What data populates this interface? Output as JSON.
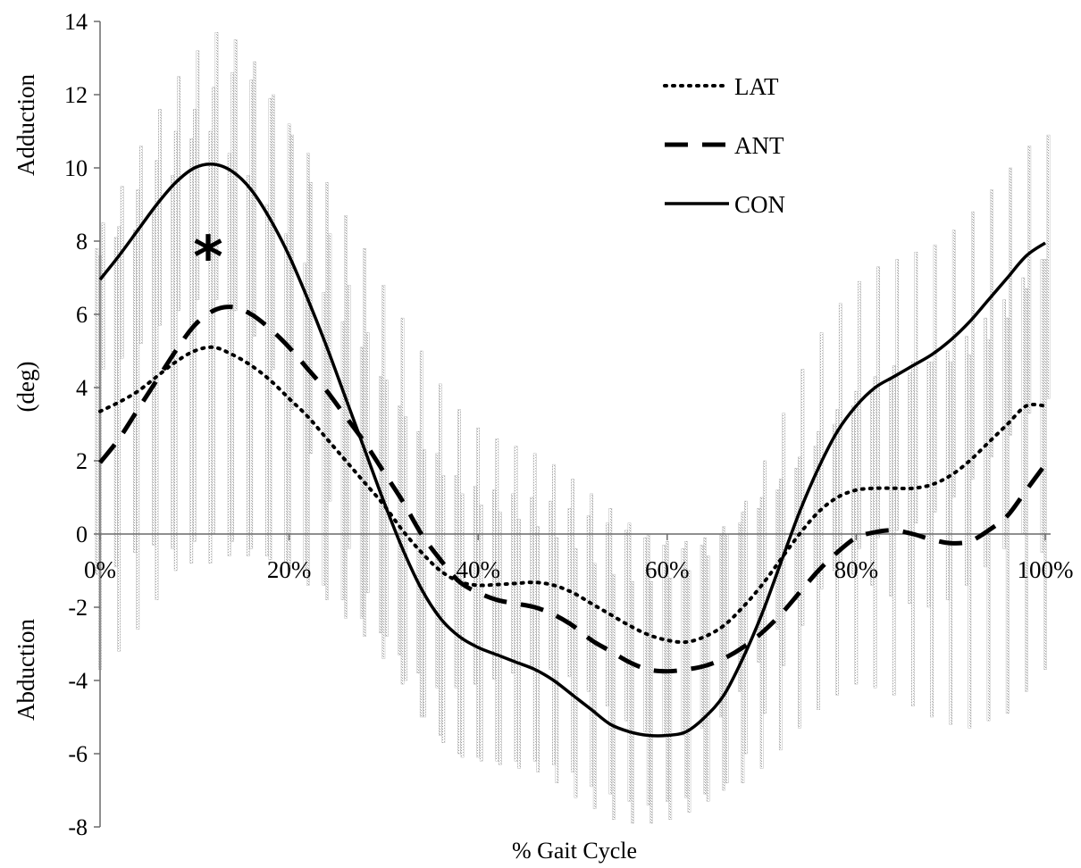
{
  "chart_data": {
    "type": "line",
    "title": "",
    "xlabel": "% Gait Cycle",
    "ylabel_top": "Adduction",
    "ylabel_mid": "(deg)",
    "ylabel_bottom": "Abduction",
    "ylim": [
      -8,
      14
    ],
    "xlim": [
      0,
      100
    ],
    "y_ticks": [
      "-8",
      "-6",
      "-4",
      "-2",
      "0",
      "2",
      "4",
      "6",
      "8",
      "10",
      "12",
      "14"
    ],
    "x_tick_labels": [
      "0%",
      "20%",
      "40%",
      "60%",
      "80%",
      "100%"
    ],
    "x_tick_values": [
      0,
      20,
      40,
      60,
      80,
      100
    ],
    "grid": false,
    "legend_position": "top-right",
    "annotation": "*",
    "annotation_x": 12,
    "annotation_y": 7.9,
    "x": [
      0,
      2,
      4,
      6,
      8,
      10,
      12,
      14,
      16,
      18,
      20,
      22,
      24,
      26,
      28,
      30,
      32,
      34,
      36,
      38,
      40,
      42,
      44,
      46,
      48,
      50,
      52,
      54,
      56,
      58,
      60,
      62,
      64,
      66,
      68,
      70,
      72,
      74,
      76,
      78,
      80,
      82,
      84,
      86,
      88,
      90,
      92,
      94,
      96,
      98,
      100
    ],
    "series": [
      {
        "name": "LAT",
        "style": "dotted",
        "values": [
          3.35,
          3.6,
          3.9,
          4.3,
          4.7,
          5.0,
          5.1,
          4.9,
          4.6,
          4.2,
          3.7,
          3.2,
          2.6,
          2.0,
          1.4,
          0.8,
          0.1,
          -0.5,
          -1.0,
          -1.3,
          -1.4,
          -1.38,
          -1.35,
          -1.32,
          -1.4,
          -1.6,
          -1.9,
          -2.2,
          -2.5,
          -2.75,
          -2.9,
          -2.95,
          -2.8,
          -2.5,
          -2.0,
          -1.4,
          -0.7,
          0.0,
          0.6,
          1.0,
          1.2,
          1.25,
          1.25,
          1.25,
          1.35,
          1.6,
          2.0,
          2.5,
          3.0,
          3.5,
          3.5
        ],
        "sd_upper": [
          7.8,
          8.1,
          8.3,
          8.9,
          9.8,
          10.8,
          11.0,
          10.4,
          9.8,
          9.0,
          8.2,
          7.4,
          6.6,
          5.8,
          5.1,
          4.3,
          3.5,
          2.8,
          2.2,
          1.6,
          1.3,
          1.2,
          1.1,
          1.0,
          0.9,
          0.7,
          0.5,
          0.3,
          0.1,
          -0.1,
          -0.3,
          -0.4,
          -0.3,
          0.0,
          0.3,
          0.7,
          1.2,
          1.8,
          2.4,
          3.0,
          3.5,
          3.9,
          4.2,
          4.4,
          4.7,
          5.0,
          5.4,
          5.9,
          6.4,
          7.0,
          7.5
        ],
        "sd_lower": [
          -1.1,
          -0.9,
          -0.5,
          -0.3,
          -0.4,
          -0.8,
          -0.8,
          -0.6,
          -0.6,
          -0.6,
          -0.8,
          -1.0,
          -1.4,
          -1.8,
          -2.3,
          -2.7,
          -3.3,
          -3.8,
          -4.2,
          -4.2,
          -4.1,
          -3.96,
          -3.8,
          -3.64,
          -3.7,
          -3.9,
          -4.3,
          -4.7,
          -5.1,
          -5.4,
          -5.5,
          -5.5,
          -5.3,
          -5.0,
          -4.3,
          -3.5,
          -2.6,
          -1.8,
          -1.2,
          -1.0,
          -1.1,
          -1.4,
          -1.7,
          -1.9,
          -2.0,
          -1.8,
          -1.4,
          -0.9,
          -0.4,
          0.0,
          -0.5
        ]
      },
      {
        "name": "ANT",
        "style": "dashed",
        "values": [
          1.95,
          2.6,
          3.4,
          4.2,
          5.0,
          5.7,
          6.1,
          6.2,
          6.0,
          5.6,
          5.1,
          4.5,
          3.9,
          3.2,
          2.5,
          1.7,
          0.9,
          0.0,
          -0.7,
          -1.3,
          -1.6,
          -1.8,
          -1.9,
          -2.0,
          -2.2,
          -2.5,
          -2.9,
          -3.2,
          -3.5,
          -3.7,
          -3.75,
          -3.7,
          -3.6,
          -3.4,
          -3.1,
          -2.7,
          -2.2,
          -1.6,
          -1.0,
          -0.5,
          -0.1,
          0.05,
          0.1,
          0.0,
          -0.15,
          -0.25,
          -0.2,
          0.1,
          0.5,
          1.2,
          1.9
        ],
        "sd_upper": [
          7.6,
          8.4,
          9.4,
          10.2,
          11.0,
          11.6,
          12.2,
          12.6,
          12.4,
          11.9,
          11.2,
          10.4,
          9.6,
          8.7,
          7.8,
          6.8,
          5.9,
          5.0,
          4.1,
          3.4,
          2.9,
          2.6,
          2.4,
          2.2,
          1.9,
          1.5,
          1.1,
          0.7,
          0.3,
          0.0,
          -0.2,
          -0.2,
          -0.1,
          0.2,
          0.6,
          1.0,
          1.5,
          2.1,
          2.8,
          3.4,
          3.9,
          4.3,
          4.6,
          4.7,
          4.7,
          4.7,
          4.9,
          5.3,
          5.9,
          6.7,
          7.5
        ],
        "sd_lower": [
          -3.7,
          -3.2,
          -2.6,
          -1.8,
          -1.0,
          -0.2,
          0.0,
          -0.2,
          -0.4,
          -0.7,
          -1.0,
          -1.4,
          -1.8,
          -2.3,
          -2.8,
          -3.4,
          -4.1,
          -5.0,
          -5.5,
          -6.0,
          -6.1,
          -6.2,
          -6.2,
          -6.2,
          -6.3,
          -6.5,
          -6.9,
          -7.1,
          -7.3,
          -7.4,
          -7.3,
          -7.2,
          -7.1,
          -7.0,
          -6.8,
          -6.4,
          -5.9,
          -5.3,
          -4.8,
          -4.4,
          -4.1,
          -4.2,
          -4.4,
          -4.7,
          -5.0,
          -5.2,
          -5.3,
          -5.1,
          -4.9,
          -4.3,
          -3.7
        ]
      },
      {
        "name": "CON",
        "style": "solid",
        "values": [
          6.95,
          7.6,
          8.3,
          9.0,
          9.6,
          10.0,
          10.1,
          9.9,
          9.4,
          8.6,
          7.6,
          6.4,
          5.1,
          3.7,
          2.3,
          0.9,
          -0.4,
          -1.5,
          -2.3,
          -2.8,
          -3.1,
          -3.3,
          -3.5,
          -3.7,
          -4.0,
          -4.4,
          -4.8,
          -5.2,
          -5.4,
          -5.5,
          -5.5,
          -5.4,
          -5.0,
          -4.4,
          -3.4,
          -2.2,
          -0.8,
          0.6,
          1.8,
          2.8,
          3.5,
          4.0,
          4.3,
          4.6,
          4.9,
          5.3,
          5.8,
          6.4,
          7.0,
          7.6,
          7.95
        ],
        "sd_upper": [
          8.5,
          9.5,
          10.6,
          11.6,
          12.5,
          13.2,
          13.7,
          13.5,
          12.9,
          12.0,
          10.9,
          9.6,
          8.2,
          6.8,
          5.5,
          4.2,
          3.2,
          2.3,
          1.6,
          1.1,
          0.8,
          0.6,
          0.4,
          0.2,
          -0.1,
          -0.4,
          -0.8,
          -1.1,
          -1.3,
          -1.3,
          -1.2,
          -1.0,
          -0.6,
          0.0,
          0.9,
          2.0,
          3.3,
          4.5,
          5.5,
          6.3,
          6.9,
          7.3,
          7.5,
          7.7,
          7.9,
          8.3,
          8.8,
          9.4,
          10.0,
          10.6,
          10.9
        ],
        "sd_lower": [
          4.5,
          4.8,
          5.2,
          5.7,
          6.1,
          6.4,
          6.4,
          6.1,
          5.4,
          4.5,
          3.4,
          2.2,
          0.9,
          -0.4,
          -1.6,
          -2.8,
          -4.0,
          -5.0,
          -5.7,
          -6.1,
          -6.2,
          -6.3,
          -6.4,
          -6.5,
          -6.8,
          -7.2,
          -7.5,
          -7.8,
          -7.9,
          -7.9,
          -7.8,
          -7.6,
          -7.3,
          -6.8,
          -6.0,
          -4.9,
          -3.6,
          -2.5,
          -1.5,
          -0.8,
          -0.4,
          -0.1,
          0.1,
          0.3,
          0.6,
          1.0,
          1.5,
          2.1,
          2.7,
          3.3,
          3.7
        ]
      }
    ]
  }
}
